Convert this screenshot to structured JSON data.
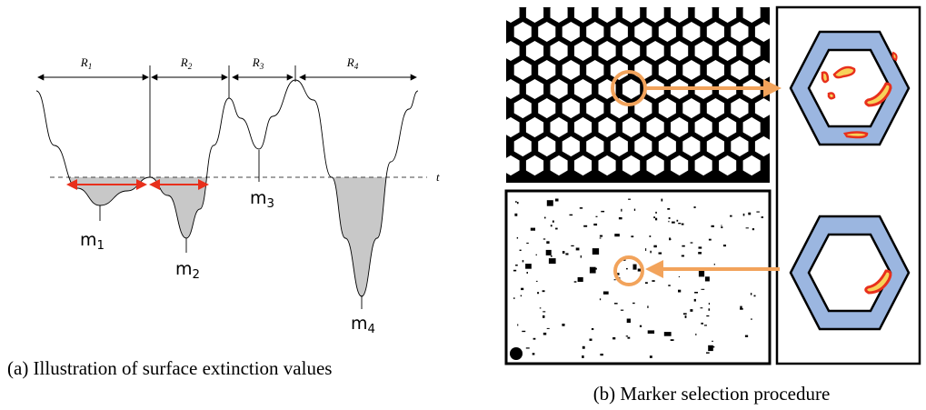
{
  "left": {
    "regions": [
      {
        "letter": "R",
        "sub": "1"
      },
      {
        "letter": "R",
        "sub": "2"
      },
      {
        "letter": "R",
        "sub": "3"
      },
      {
        "letter": "R",
        "sub": "4"
      }
    ],
    "threshold": "t",
    "minima": [
      {
        "letter": "m",
        "sub": "1"
      },
      {
        "letter": "m",
        "sub": "2"
      },
      {
        "letter": "m",
        "sub": "3"
      },
      {
        "letter": "m",
        "sub": "4"
      }
    ],
    "caption": "(a) Illustration of surface extinction values"
  },
  "right": {
    "caption": "(b) Marker selection procedure"
  }
}
